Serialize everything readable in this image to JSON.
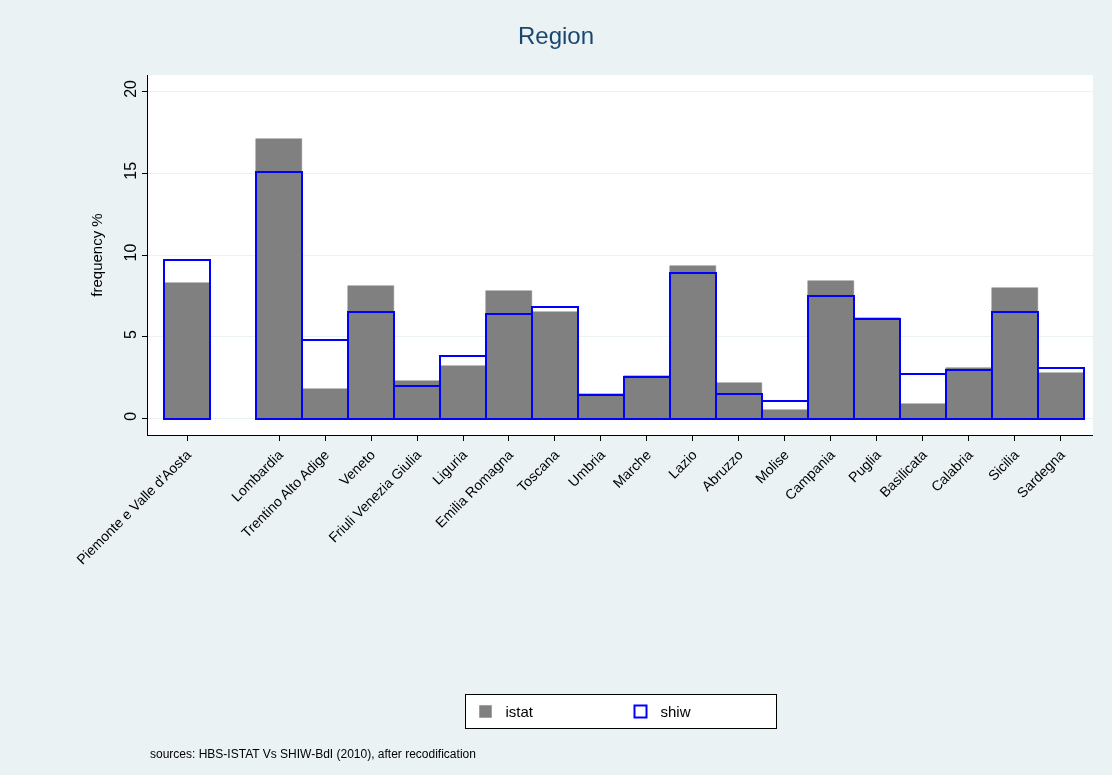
{
  "chart_data": {
    "type": "bar",
    "title": "Region",
    "ylabel": "frequency %",
    "categories": [
      "Piemonte e Valle d'Aosta",
      null,
      "Lombardia",
      "Trentino Alto Adige",
      "Veneto",
      "Friuli Venezia Giulia",
      "Liguria",
      "Emilia Romagna",
      "Toscana",
      "Umbria",
      "Marche",
      "Lazio",
      "Abruzzo",
      "Molise",
      "Campania",
      "Puglia",
      "Basilicata",
      "Calabria",
      "Sicilia",
      "Sardegna"
    ],
    "series": [
      {
        "name": "istat",
        "color": "#808080",
        "values": [
          8.3,
          null,
          17.1,
          1.8,
          8.1,
          2.3,
          3.2,
          7.8,
          6.5,
          1.5,
          2.63,
          9.3,
          2.2,
          0.5,
          8.4,
          6.16,
          0.9,
          3.1,
          8.0,
          2.8
        ]
      },
      {
        "name": "shiw",
        "color": "#0000ff",
        "values": [
          9.7,
          null,
          15.1,
          4.8,
          6.5,
          2.0,
          3.8,
          6.4,
          6.8,
          1.42,
          2.57,
          8.9,
          1.5,
          1.1,
          7.5,
          6.1,
          2.7,
          3.0,
          6.5,
          3.1
        ]
      }
    ],
    "ylim": [
      -1,
      21
    ],
    "yticks": [
      0,
      5,
      10,
      15,
      20
    ],
    "grid": "y",
    "legend": "bottom",
    "annotations": [
      "sources: HBS-ISTAT Vs SHIW-BdI (2010), after recodification"
    ]
  }
}
